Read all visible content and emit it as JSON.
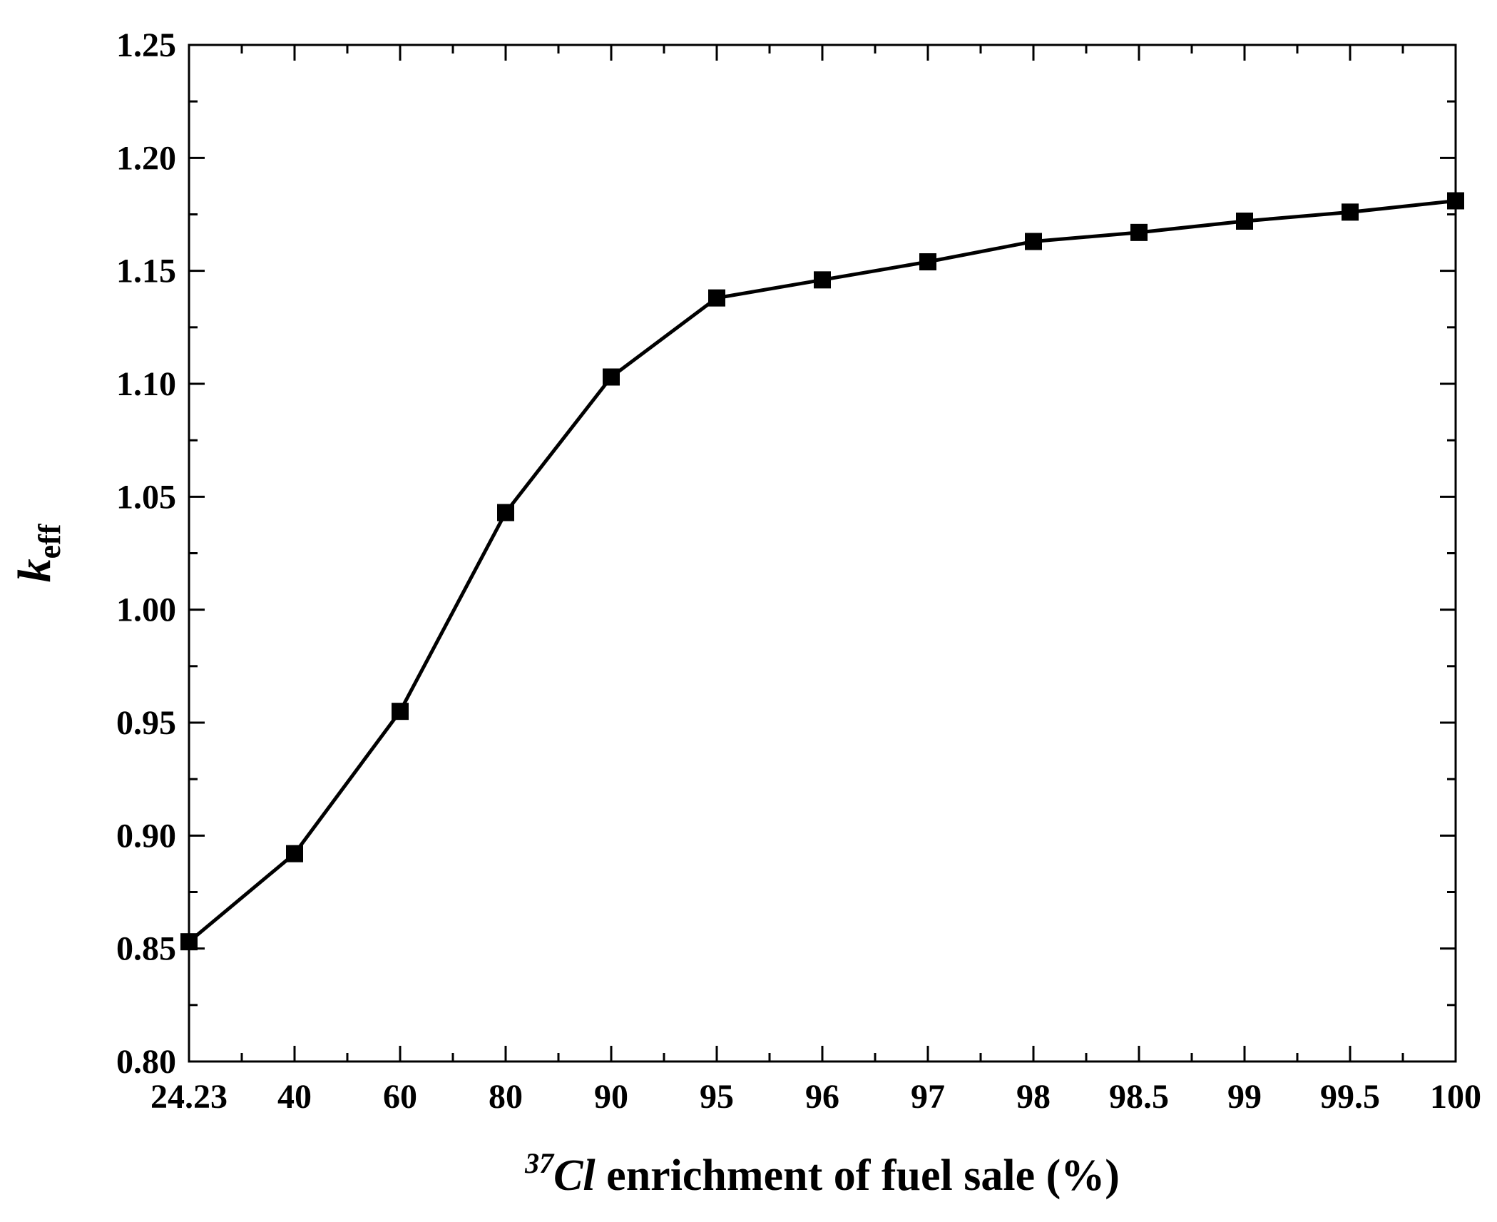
{
  "chart_data": {
    "type": "line",
    "title": "",
    "xlabel": {
      "superscript": "37",
      "italic": "Cl",
      "rest": " enrichment of fuel sale (%)"
    },
    "ylabel": {
      "main": "k",
      "subscript": "eff"
    },
    "categories": [
      "24.23",
      "40",
      "60",
      "80",
      "90",
      "95",
      "96",
      "97",
      "98",
      "98.5",
      "99",
      "99.5",
      "100"
    ],
    "series": [
      {
        "values": [
          0.853,
          0.892,
          0.955,
          1.043,
          1.103,
          1.138,
          1.146,
          1.154,
          1.163,
          1.167,
          1.172,
          1.176,
          1.181
        ],
        "color": "#000000",
        "marker": "square"
      }
    ],
    "ylim": [
      0.8,
      1.25
    ],
    "yticks": [
      "0.80",
      "0.85",
      "0.90",
      "0.95",
      "1.00",
      "1.05",
      "1.10",
      "1.15",
      "1.20",
      "1.25"
    ],
    "grid": false,
    "legend": "none"
  }
}
